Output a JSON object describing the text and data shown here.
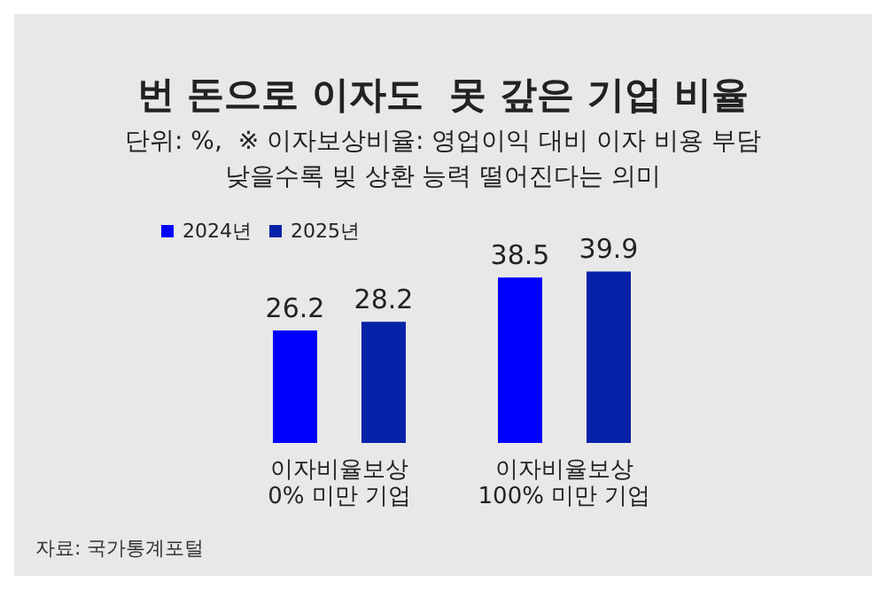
{
  "chart_data": {
    "type": "bar",
    "title": "번 돈으로 이자도  못 갚은 기업 비율",
    "subtitle": "단위: %,  ※ 이자보상비율: 영업이익 대비 이자 비용 부담\n낮을수록 빚 상환 능력 떨어진다는 의미",
    "categories": [
      "이자비율보상\n0% 미만 기업",
      "이자비율보상\n100% 미만 기업"
    ],
    "series": [
      {
        "name": "2024년",
        "color": "#0000ff",
        "values": [
          26.2,
          38.5
        ]
      },
      {
        "name": "2025년",
        "color": "#0522a8",
        "values": [
          28.2,
          39.9
        ]
      }
    ],
    "data_labels": true,
    "legend": "top left",
    "annotations": [
      "자료: 국가통계포털"
    ]
  }
}
